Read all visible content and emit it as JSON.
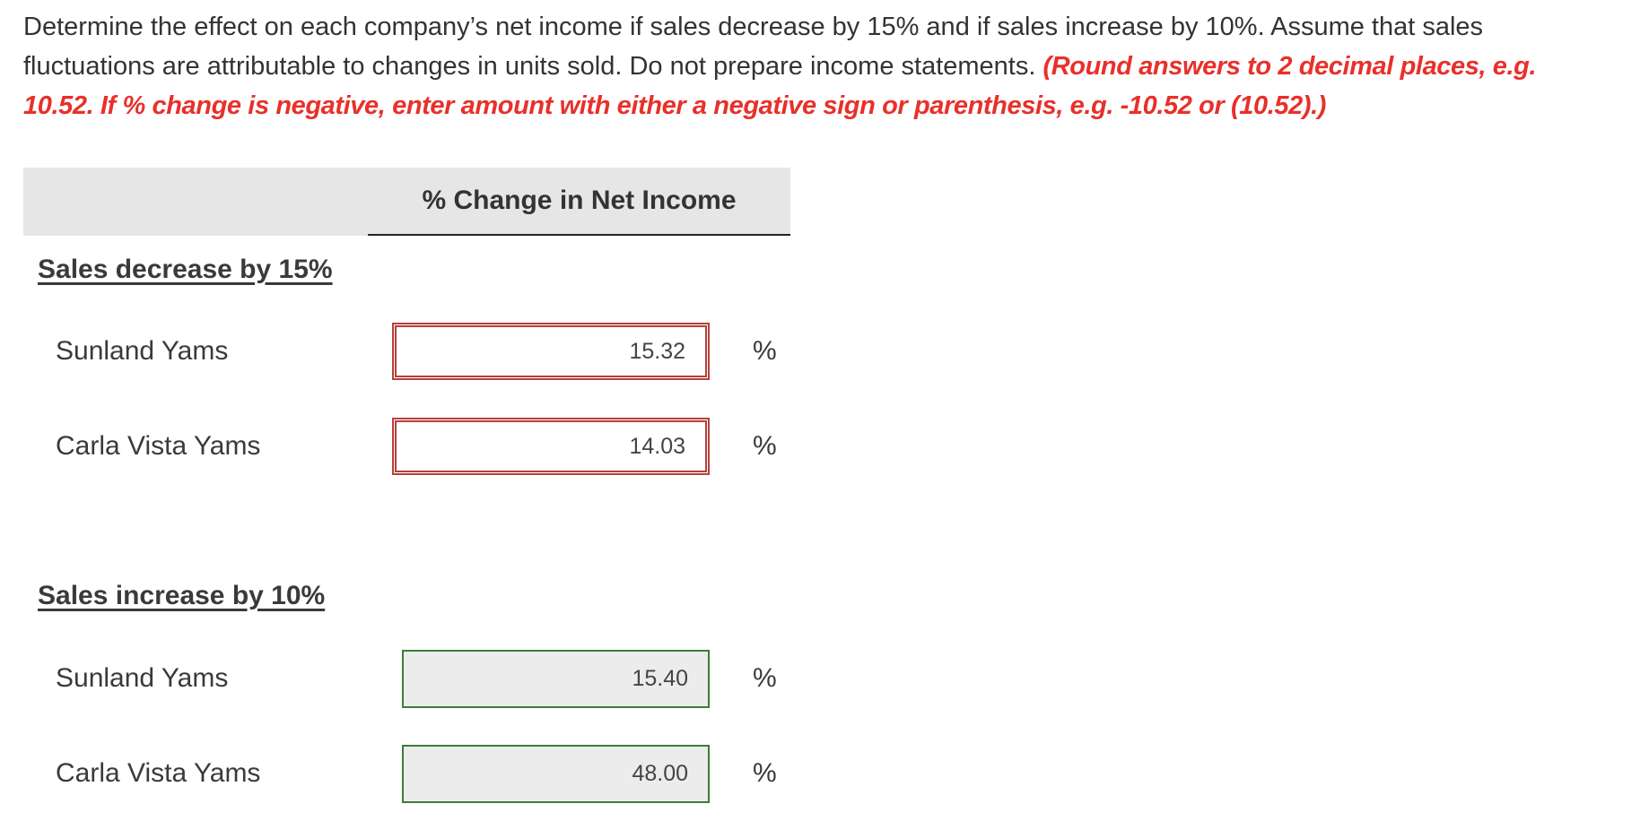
{
  "instructions": {
    "text": "Determine the effect on each company’s net income if sales decrease by 15% and if sales increase by 10%. Assume that sales fluctuations are attributable to changes in units sold. Do not prepare income statements. ",
    "hint": "(Round answers to 2 decimal places, e.g. 10.52. If % change is negative, enter amount with either a negative sign or parenthesis, e.g. -10.52 or (10.52).)"
  },
  "table": {
    "column_header": "% Change in Net Income",
    "sections": [
      {
        "label": "Sales decrease by 15%",
        "rows": [
          {
            "company": "Sunland Yams",
            "value": "15.32",
            "unit": "%",
            "status": "incorrect"
          },
          {
            "company": "Carla Vista Yams",
            "value": "14.03",
            "unit": "%",
            "status": "incorrect"
          }
        ]
      },
      {
        "label": "Sales increase by 10%",
        "rows": [
          {
            "company": "Sunland Yams",
            "value": "15.40",
            "unit": "%",
            "status": "correct"
          },
          {
            "company": "Carla Vista Yams",
            "value": "48.00",
            "unit": "%",
            "status": "correct"
          }
        ]
      }
    ]
  },
  "colors": {
    "hint_red": "#e8302a",
    "error_border": "#b5403a",
    "correct_border": "#3f7a3a",
    "header_band": "#e6e6e6"
  }
}
